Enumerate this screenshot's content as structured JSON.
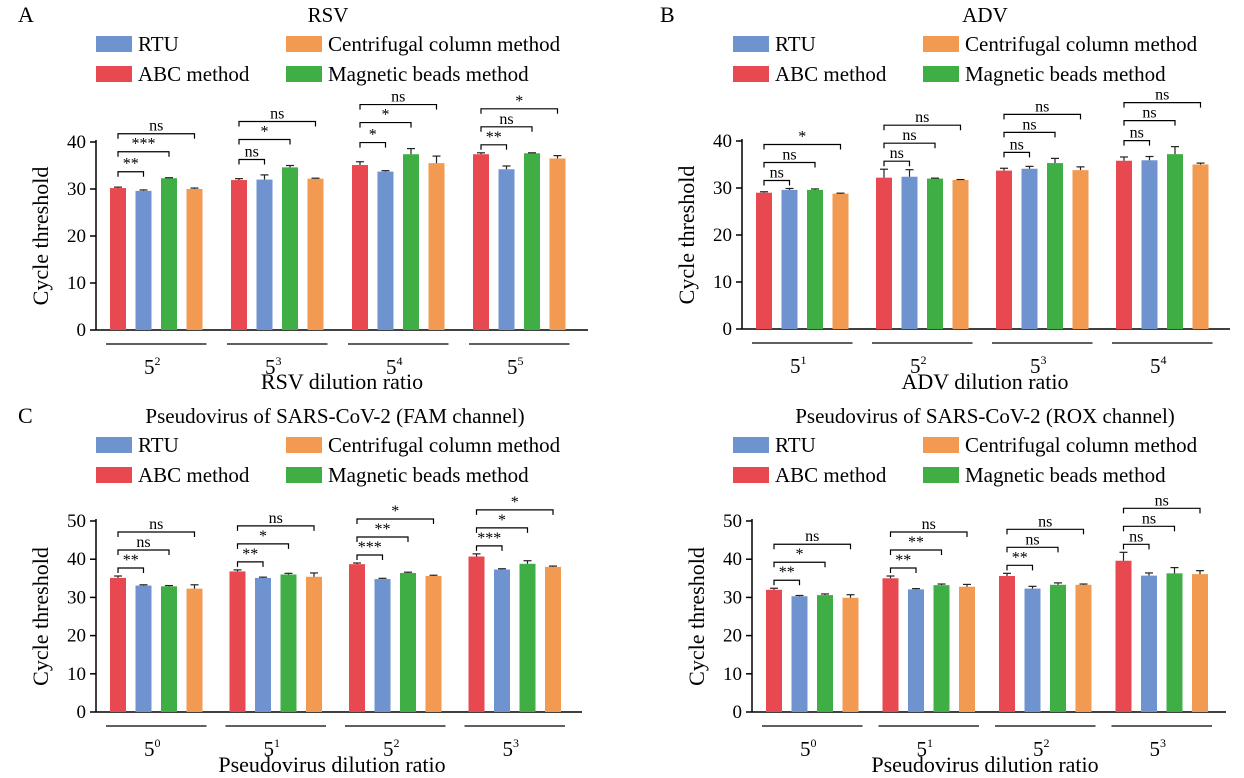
{
  "colors": {
    "RTU": "#6e93cf",
    "ABC method": "#e8484f",
    "Centrifugal column method": "#f39a52",
    "Magnetic beads method": "#3fae44"
  },
  "legend": {
    "items": [
      "RTU",
      "Centrifugal column method",
      "ABC method",
      "Magnetic beads method"
    ]
  },
  "chart_data": [
    {
      "type": "bar",
      "panel": "A",
      "title": "RSV",
      "xlabel": "RSV dilution ratio",
      "ylabel": "Cycle threshold",
      "ylim": [
        0,
        40
      ],
      "yticks": [
        0,
        10,
        20,
        30,
        40
      ],
      "categories": [
        {
          "base": "5",
          "exp": "2"
        },
        {
          "base": "5",
          "exp": "3"
        },
        {
          "base": "5",
          "exp": "4"
        },
        {
          "base": "5",
          "exp": "5"
        }
      ],
      "series": [
        {
          "name": "ABC method",
          "values": [
            30.2,
            31.9,
            35.1,
            37.4
          ],
          "err": [
            0.2,
            0.3,
            0.7,
            0.3
          ]
        },
        {
          "name": "RTU",
          "values": [
            29.6,
            32.0,
            33.7,
            34.2
          ],
          "err": [
            0.2,
            1.0,
            0.2,
            0.7
          ]
        },
        {
          "name": "Magnetic beads method",
          "values": [
            32.3,
            34.6,
            37.4,
            37.6
          ],
          "err": [
            0.1,
            0.4,
            1.2,
            0.1
          ]
        },
        {
          "name": "Centrifugal column method",
          "values": [
            30.0,
            32.2,
            35.5,
            36.5
          ],
          "err": [
            0.2,
            0.1,
            1.5,
            0.6
          ]
        }
      ],
      "annotations": [
        [
          {
            "label": "**",
            "to": 1
          },
          {
            "label": "***",
            "to": 2
          },
          {
            "label": "ns",
            "to": 3
          }
        ],
        [
          {
            "label": "ns",
            "to": 1
          },
          {
            "label": "*",
            "to": 2
          },
          {
            "label": "ns",
            "to": 3
          }
        ],
        [
          {
            "label": "*",
            "to": 1
          },
          {
            "label": "*",
            "to": 2
          },
          {
            "label": "ns",
            "to": 3
          }
        ],
        [
          {
            "label": "**",
            "to": 1
          },
          {
            "label": "ns",
            "to": 2
          },
          {
            "label": "*",
            "to": 3
          }
        ]
      ]
    },
    {
      "type": "bar",
      "panel": "B",
      "title": "ADV",
      "xlabel": "ADV dilution ratio",
      "ylabel": "Cycle threshold",
      "ylim": [
        0,
        40
      ],
      "yticks": [
        0,
        10,
        20,
        30,
        40
      ],
      "categories": [
        {
          "base": "5",
          "exp": "1"
        },
        {
          "base": "5",
          "exp": "2"
        },
        {
          "base": "5",
          "exp": "3"
        },
        {
          "base": "5",
          "exp": "4"
        }
      ],
      "series": [
        {
          "name": "ABC method",
          "values": [
            29.0,
            32.2,
            33.7,
            35.8
          ],
          "err": [
            0.2,
            1.8,
            0.5,
            0.8
          ]
        },
        {
          "name": "RTU",
          "values": [
            29.6,
            32.4,
            34.1,
            35.9
          ],
          "err": [
            0.3,
            1.5,
            0.5,
            0.8
          ]
        },
        {
          "name": "Magnetic beads method",
          "values": [
            29.6,
            32.0,
            35.3,
            37.2
          ],
          "err": [
            0.2,
            0.1,
            1.0,
            1.6
          ]
        },
        {
          "name": "Centrifugal column method",
          "values": [
            28.8,
            31.7,
            33.8,
            35.0
          ],
          "err": [
            0.1,
            0.1,
            0.7,
            0.3
          ]
        }
      ],
      "annotations": [
        [
          {
            "label": "ns",
            "to": 1
          },
          {
            "label": "ns",
            "to": 2
          },
          {
            "label": "*",
            "to": 3
          }
        ],
        [
          {
            "label": "ns",
            "to": 1
          },
          {
            "label": "ns",
            "to": 2
          },
          {
            "label": "ns",
            "to": 3
          }
        ],
        [
          {
            "label": "ns",
            "to": 1
          },
          {
            "label": "ns",
            "to": 2
          },
          {
            "label": "ns",
            "to": 3
          }
        ],
        [
          {
            "label": "ns",
            "to": 1
          },
          {
            "label": "ns",
            "to": 2
          },
          {
            "label": "ns",
            "to": 3
          }
        ]
      ]
    },
    {
      "type": "bar",
      "panel": "C",
      "title": "Pseudovirus of SARS-CoV-2 (FAM channel)",
      "xlabel": "Pseudovirus dilution ratio",
      "ylabel": "Cycle threshold",
      "ylim": [
        0,
        50
      ],
      "yticks": [
        0,
        10,
        20,
        30,
        40,
        50
      ],
      "categories": [
        {
          "base": "5",
          "exp": "0"
        },
        {
          "base": "5",
          "exp": "1"
        },
        {
          "base": "5",
          "exp": "2"
        },
        {
          "base": "5",
          "exp": "3"
        }
      ],
      "series": [
        {
          "name": "ABC method",
          "values": [
            35.1,
            36.8,
            38.7,
            40.7
          ],
          "err": [
            0.5,
            0.4,
            0.3,
            0.7
          ]
        },
        {
          "name": "RTU",
          "values": [
            33.1,
            35.1,
            34.8,
            37.3
          ],
          "err": [
            0.2,
            0.2,
            0.2,
            0.2
          ]
        },
        {
          "name": "Magnetic beads method",
          "values": [
            32.9,
            36.0,
            36.4,
            38.8
          ],
          "err": [
            0.2,
            0.3,
            0.2,
            0.8
          ]
        },
        {
          "name": "Centrifugal column method",
          "values": [
            32.3,
            35.4,
            35.6,
            38.0
          ],
          "err": [
            1.0,
            1.0,
            0.2,
            0.2
          ]
        }
      ],
      "annotations": [
        [
          {
            "label": "**",
            "to": 1
          },
          {
            "label": "ns",
            "to": 2
          },
          {
            "label": "ns",
            "to": 3
          }
        ],
        [
          {
            "label": "**",
            "to": 1
          },
          {
            "label": "*",
            "to": 2
          },
          {
            "label": "ns",
            "to": 3
          }
        ],
        [
          {
            "label": "***",
            "to": 1
          },
          {
            "label": "**",
            "to": 2
          },
          {
            "label": "*",
            "to": 3
          }
        ],
        [
          {
            "label": "***",
            "to": 1
          },
          {
            "label": "*",
            "to": 2
          },
          {
            "label": "*",
            "to": 3
          }
        ]
      ]
    },
    {
      "type": "bar",
      "panel": "",
      "title": "Pseudovirus of SARS-CoV-2 (ROX channel)",
      "xlabel": "Pseudovirus dilution ratio",
      "ylabel": "Cycle threshold",
      "ylim": [
        0,
        50
      ],
      "yticks": [
        0,
        10,
        20,
        30,
        40,
        50
      ],
      "categories": [
        {
          "base": "5",
          "exp": "0"
        },
        {
          "base": "5",
          "exp": "1"
        },
        {
          "base": "5",
          "exp": "2"
        },
        {
          "base": "5",
          "exp": "3"
        }
      ],
      "series": [
        {
          "name": "ABC method",
          "values": [
            32.0,
            35.0,
            35.6,
            39.6
          ],
          "err": [
            0.4,
            0.6,
            0.7,
            2.2
          ]
        },
        {
          "name": "RTU",
          "values": [
            30.3,
            32.1,
            32.3,
            35.7
          ],
          "err": [
            0.2,
            0.2,
            0.6,
            0.7
          ]
        },
        {
          "name": "Magnetic beads method",
          "values": [
            30.6,
            33.2,
            33.3,
            36.3
          ],
          "err": [
            0.3,
            0.3,
            0.5,
            1.5
          ]
        },
        {
          "name": "Centrifugal column method",
          "values": [
            29.9,
            32.8,
            33.3,
            36.1
          ],
          "err": [
            0.8,
            0.6,
            0.2,
            0.9
          ]
        }
      ],
      "annotations": [
        [
          {
            "label": "**",
            "to": 1
          },
          {
            "label": "*",
            "to": 2
          },
          {
            "label": "ns",
            "to": 3
          }
        ],
        [
          {
            "label": "**",
            "to": 1
          },
          {
            "label": "**",
            "to": 2
          },
          {
            "label": "ns",
            "to": 3
          }
        ],
        [
          {
            "label": "**",
            "to": 1
          },
          {
            "label": "ns",
            "to": 2
          },
          {
            "label": "ns",
            "to": 3
          }
        ],
        [
          {
            "label": "ns",
            "to": 1
          },
          {
            "label": "ns",
            "to": 2
          },
          {
            "label": "ns",
            "to": 3
          }
        ]
      ]
    }
  ]
}
